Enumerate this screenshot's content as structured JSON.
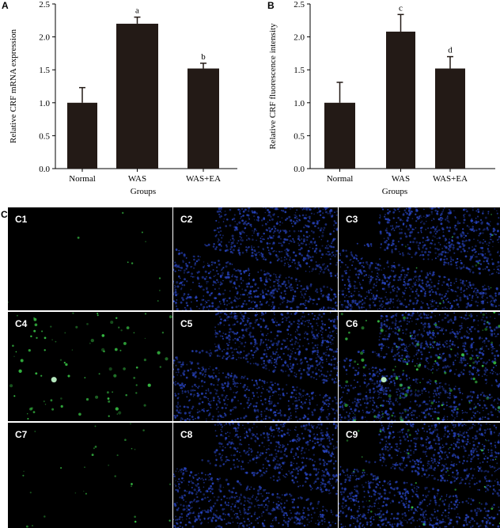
{
  "panels": {
    "A": "A",
    "B": "B",
    "C": "C"
  },
  "chart_data": [
    {
      "type": "bar",
      "panel": "A",
      "categories": [
        "Normal",
        "WAS",
        "WAS+EA"
      ],
      "values": [
        1.0,
        2.2,
        1.52
      ],
      "errors": [
        0.23,
        0.1,
        0.08
      ],
      "annotations": [
        "",
        "a",
        "b"
      ],
      "xlabel": "Groups",
      "ylabel": "Relative CRF mRNA expression",
      "ylim": [
        0,
        2.5
      ],
      "yticks": [
        "0.0",
        "0.5",
        "1.0",
        "1.5",
        "2.0",
        "2.5"
      ],
      "bar_color": "#231a16"
    },
    {
      "type": "bar",
      "panel": "B",
      "categories": [
        "Normal",
        "WAS",
        "WAS+EA"
      ],
      "values": [
        1.0,
        2.08,
        1.52
      ],
      "errors": [
        0.31,
        0.26,
        0.18
      ],
      "annotations": [
        "",
        "c",
        "d"
      ],
      "xlabel": "Groups",
      "ylabel": "Relative CRF fluorescence intensity",
      "ylim": [
        0,
        2.5
      ],
      "yticks": [
        "0.0",
        "0.5",
        "1.0",
        "1.5",
        "2.0",
        "2.5"
      ],
      "bar_color": "#231a16"
    }
  ],
  "micrographs": [
    {
      "label": "C1",
      "stain": "green",
      "signal": "faint"
    },
    {
      "label": "C2",
      "stain": "blue",
      "signal": "nuclei"
    },
    {
      "label": "C3",
      "stain": "merge",
      "signal": "faint"
    },
    {
      "label": "C4",
      "stain": "green",
      "signal": "strong"
    },
    {
      "label": "C5",
      "stain": "blue",
      "signal": "nuclei"
    },
    {
      "label": "C6",
      "stain": "merge",
      "signal": "strong"
    },
    {
      "label": "C7",
      "stain": "green",
      "signal": "moderate"
    },
    {
      "label": "C8",
      "stain": "blue",
      "signal": "nuclei"
    },
    {
      "label": "C9",
      "stain": "merge",
      "signal": "moderate"
    }
  ],
  "colors": {
    "bar": "#231a16",
    "green_signal": "#3cd24a",
    "blue_nuclei": "#2a47c8",
    "tile_background": "#000000"
  }
}
